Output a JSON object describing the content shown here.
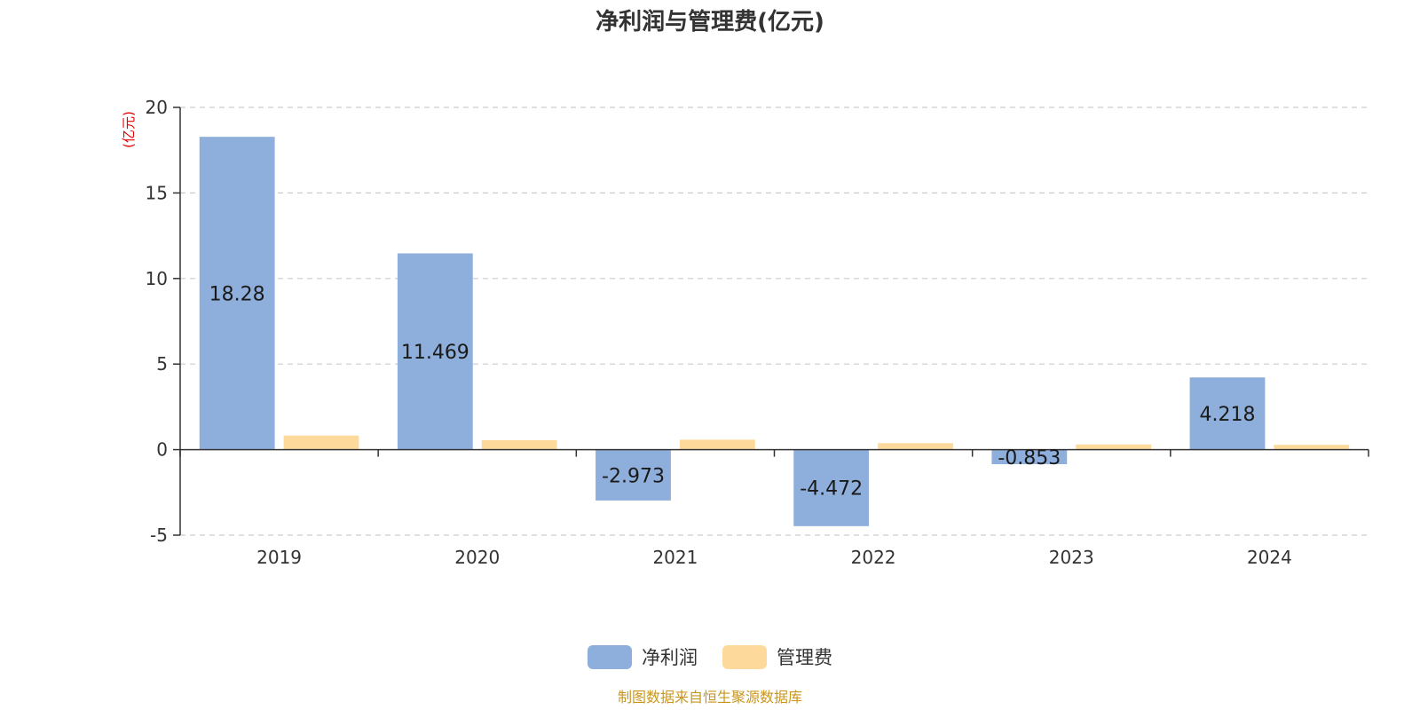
{
  "chart_data": {
    "type": "bar",
    "title": "净利润与管理费(亿元)",
    "ylabel": "(亿元)",
    "xlabel": "",
    "categories": [
      "2019",
      "2020",
      "2021",
      "2022",
      "2023",
      "2024"
    ],
    "ylim": [
      -5,
      20
    ],
    "yticks": [
      20,
      15,
      10,
      5,
      0,
      -5
    ],
    "grid": true,
    "legend_position": "bottom",
    "series": [
      {
        "name": "净利润",
        "color": "#8eaedb",
        "values": [
          18.28,
          11.469,
          -2.973,
          -4.472,
          -0.853,
          4.218
        ],
        "labels": [
          "18.28",
          "11.469",
          "-2.973",
          "-4.472",
          "-0.853",
          "4.218"
        ]
      },
      {
        "name": "管理费",
        "color": "#fdd99b",
        "values": [
          0.82,
          0.55,
          0.58,
          0.38,
          0.3,
          0.28
        ]
      }
    ],
    "source": "制图数据来自恒生聚源数据库",
    "colors": {
      "source": "#c8961e",
      "ylabel": "#e60000"
    }
  }
}
